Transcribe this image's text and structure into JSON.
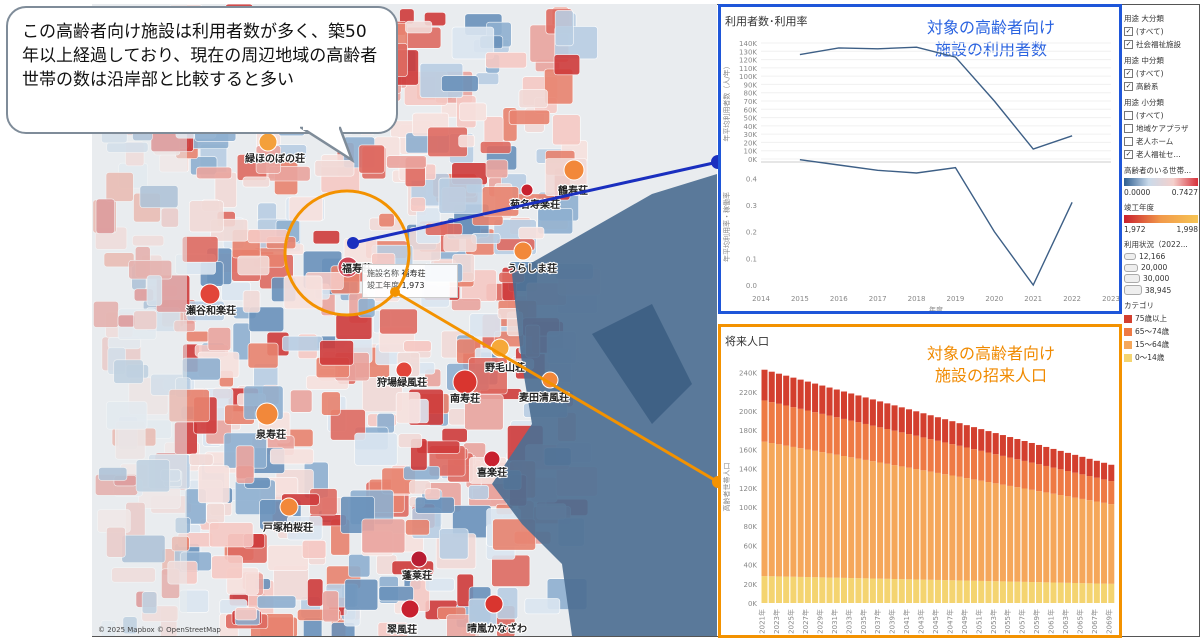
{
  "callout": {
    "text": "この高齢者向け施設は利用者数が多く、築50年以上経過しており、現在の周辺地域の高齢者世帯の数は沿岸部と比較すると多い"
  },
  "map": {
    "attribution": "© 2025 Mapbox © OpenStreetMap",
    "facilities": [
      {
        "name": "緑ほのぼの荘"
      },
      {
        "name": "菊名寿楽荘"
      },
      {
        "name": "鶴寿荘"
      },
      {
        "name": "福寿荘"
      },
      {
        "name": "うらしま荘"
      },
      {
        "name": "瀬谷和楽荘"
      },
      {
        "name": "野毛山荘"
      },
      {
        "name": "狩場緑風荘"
      },
      {
        "name": "南寿荘"
      },
      {
        "name": "麦田清風荘"
      },
      {
        "name": "泉寿荘"
      },
      {
        "name": "喜楽荘"
      },
      {
        "name": "戸塚柏桜荘"
      },
      {
        "name": "蓬莱荘"
      },
      {
        "name": "翠風荘"
      },
      {
        "name": "晴嵐かなざわ"
      }
    ],
    "tooltip": {
      "line1": "施設名称",
      "line1_val": "福寿荘",
      "line2": "竣工年度",
      "line2_val": "1,973"
    }
  },
  "usage_panel": {
    "title": "利用者数･利用率",
    "overlay": "対象の高齢者向け\n施設の利用者数",
    "y1_label": "年平均利用者数（人/年）",
    "y2_label": "年平均利用率・稼働率",
    "x_label": "年度",
    "y1_ticks": [
      "0K",
      "10K",
      "20K",
      "30K",
      "40K",
      "50K",
      "60K",
      "70K",
      "80K",
      "90K",
      "100K",
      "110K",
      "120K",
      "130K",
      "140K"
    ],
    "y2_ticks": [
      "0.0",
      "0.1",
      "0.2",
      "0.3",
      "0.4"
    ],
    "x_ticks": [
      "2014",
      "2015",
      "2016",
      "2017",
      "2018",
      "2019",
      "2020",
      "2021",
      "2022",
      "2023"
    ]
  },
  "future_panel": {
    "title": "将来人口",
    "overlay": "対象の高齢者向け\n施設の招来人口",
    "y_label": "高齢者世帯人口",
    "y_ticks": [
      "0K",
      "20K",
      "40K",
      "60K",
      "80K",
      "100K",
      "120K",
      "140K",
      "160K",
      "180K",
      "200K",
      "220K",
      "240K"
    ],
    "x_tick_suffix": "年"
  },
  "legend": {
    "g1": "用途 大分類",
    "g1_items": [
      {
        "label": "(すべて)",
        "checked": true
      },
      {
        "label": "社会福祉施設",
        "checked": true
      }
    ],
    "g2": "用途 中分類",
    "g2_items": [
      {
        "label": "(すべて)",
        "checked": true
      },
      {
        "label": "高齢系",
        "checked": true
      }
    ],
    "g3": "用途 小分類",
    "g3_items": [
      {
        "label": "(すべて)",
        "checked": false
      },
      {
        "label": "地域ケアプラザ",
        "checked": false
      },
      {
        "label": "老人ホーム",
        "checked": false
      },
      {
        "label": "老人福祉セ...",
        "checked": true
      }
    ],
    "ratio_title": "高齢者のいる世帯...",
    "ratio_min": "0.0000",
    "ratio_max": "0.7427",
    "year_title": "竣工年度",
    "year_min": "1,972",
    "year_max": "1,998",
    "size_title": "利用状況（2022...",
    "sizes": [
      "12,166",
      "20,000",
      "30,000",
      "38,945"
    ],
    "cat_title": "カテゴリ",
    "cats": [
      {
        "label": "75歳以上",
        "color": "#d33f2e"
      },
      {
        "label": "65～74歳",
        "color": "#ee7a44"
      },
      {
        "label": "15～64歳",
        "color": "#f5a75a"
      },
      {
        "label": "0～14歳",
        "color": "#f4d470"
      }
    ]
  },
  "chart_data": [
    {
      "type": "line",
      "title": "利用者数･利用率",
      "x": [
        2015,
        2016,
        2017,
        2018,
        2019,
        2020,
        2021,
        2022
      ],
      "series": [
        {
          "name": "年平均利用者数（人/年）",
          "values": [
            126000,
            134000,
            133000,
            135000,
            123000,
            70000,
            12000,
            28000
          ]
        },
        {
          "name": "年平均利用率・稼働率",
          "values": [
            0.47,
            0.45,
            0.43,
            0.42,
            0.44,
            0.2,
            0.0,
            0.31
          ]
        }
      ],
      "xlabel": "年度",
      "ylim": [
        [
          0,
          140000
        ],
        [
          0,
          0.45
        ]
      ]
    },
    {
      "type": "bar",
      "title": "将来人口",
      "ylabel": "高齢者世帯人口",
      "x_start": 2021,
      "x_end": 2069,
      "series": [
        {
          "name": "0～14歳",
          "values_start": 28000,
          "values_end": 20000
        },
        {
          "name": "15～64歳",
          "values_start": 140000,
          "values_end": 83000
        },
        {
          "name": "65～74歳",
          "values_start": 43000,
          "values_end": 24000
        },
        {
          "name": "75歳以上",
          "values_start": 32000,
          "values_end": 17000
        }
      ],
      "ylim": [
        0,
        250000
      ]
    }
  ]
}
